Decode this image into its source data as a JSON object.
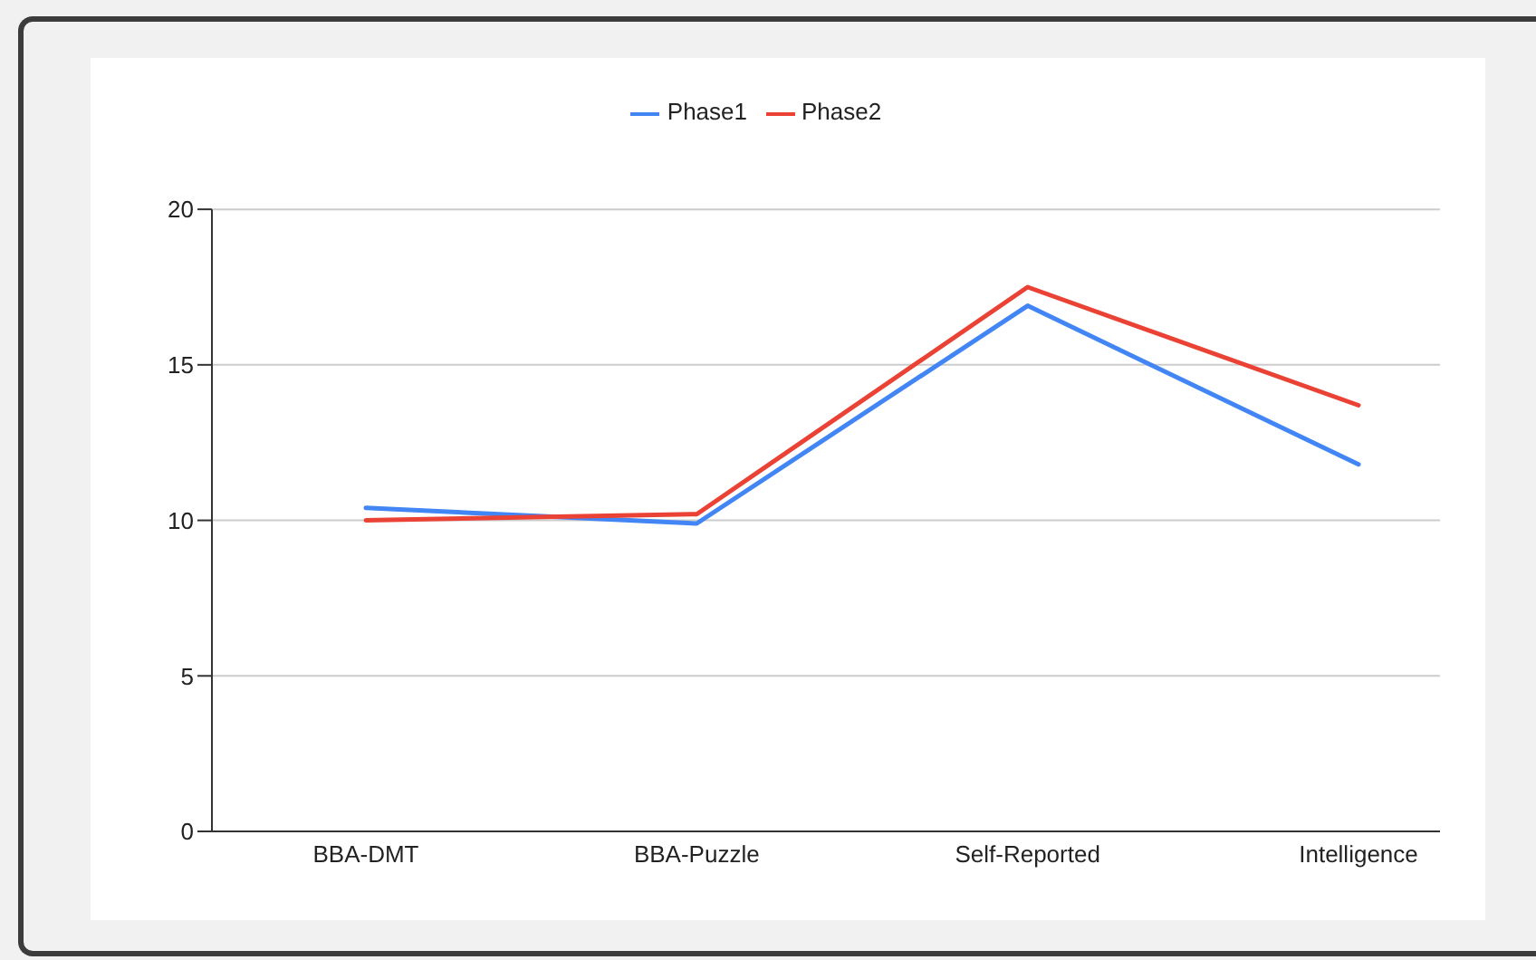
{
  "chart_data": {
    "type": "line",
    "categories": [
      "BBA-DMT",
      "BBA-Puzzle",
      "Self-Reported",
      "Intelligence"
    ],
    "series": [
      {
        "name": "Phase1",
        "color": "#4285f4",
        "values": [
          10.4,
          9.9,
          16.9,
          11.8
        ]
      },
      {
        "name": "Phase2",
        "color": "#ea4335",
        "values": [
          10.0,
          10.2,
          17.5,
          13.7
        ]
      }
    ],
    "ylim": [
      0,
      20
    ],
    "yticks": [
      0,
      5,
      10,
      15,
      20
    ],
    "grid": "y",
    "legend": "top",
    "marker": "none",
    "line_style": "solid"
  }
}
